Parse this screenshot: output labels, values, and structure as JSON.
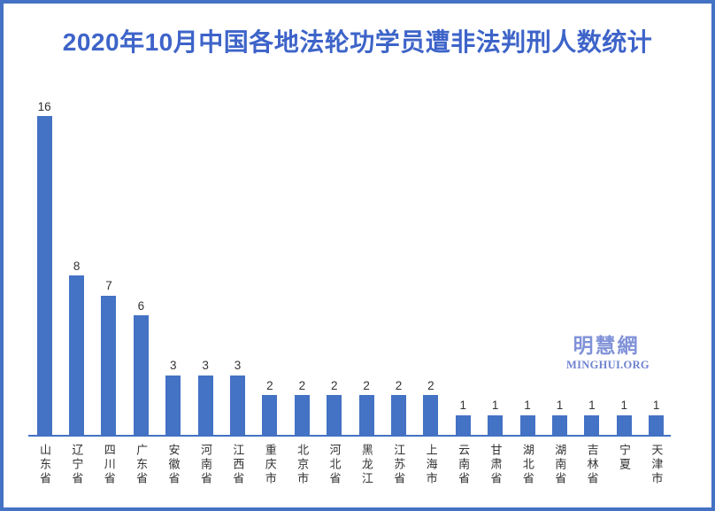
{
  "chart_data": {
    "type": "bar",
    "title": "2020年10月中国各地法轮功学员遭非法判刑人数统计",
    "categories": [
      "山东省",
      "辽宁省",
      "四川省",
      "广东省",
      "安徽省",
      "河南省",
      "江西省",
      "重庆市",
      "北京市",
      "河北省",
      "黑龙江",
      "江苏省",
      "上海市",
      "云南省",
      "甘肃省",
      "湖北省",
      "湖南省",
      "吉林省",
      "宁夏",
      "天津市"
    ],
    "values": [
      16,
      8,
      7,
      6,
      3,
      3,
      3,
      2,
      2,
      2,
      2,
      2,
      2,
      1,
      1,
      1,
      1,
      1,
      1,
      1
    ],
    "xlabel": "",
    "ylabel": "",
    "ylim": [
      0,
      16
    ],
    "grid": false,
    "legend": false,
    "data_labels": true,
    "bar_color": "#4472C4"
  },
  "watermark": {
    "chinese": "明慧網",
    "english": "MINGHUI.ORG"
  },
  "colors": {
    "frame_border": "#4472C4",
    "title_text": "#3E64C9",
    "bar_fill": "#4472C4",
    "axis_line": "#4472C4",
    "value_label_text": "#333333",
    "category_label_text": "#333333",
    "watermark_chinese": "#8092D8",
    "watermark_english": "#7083CF"
  }
}
